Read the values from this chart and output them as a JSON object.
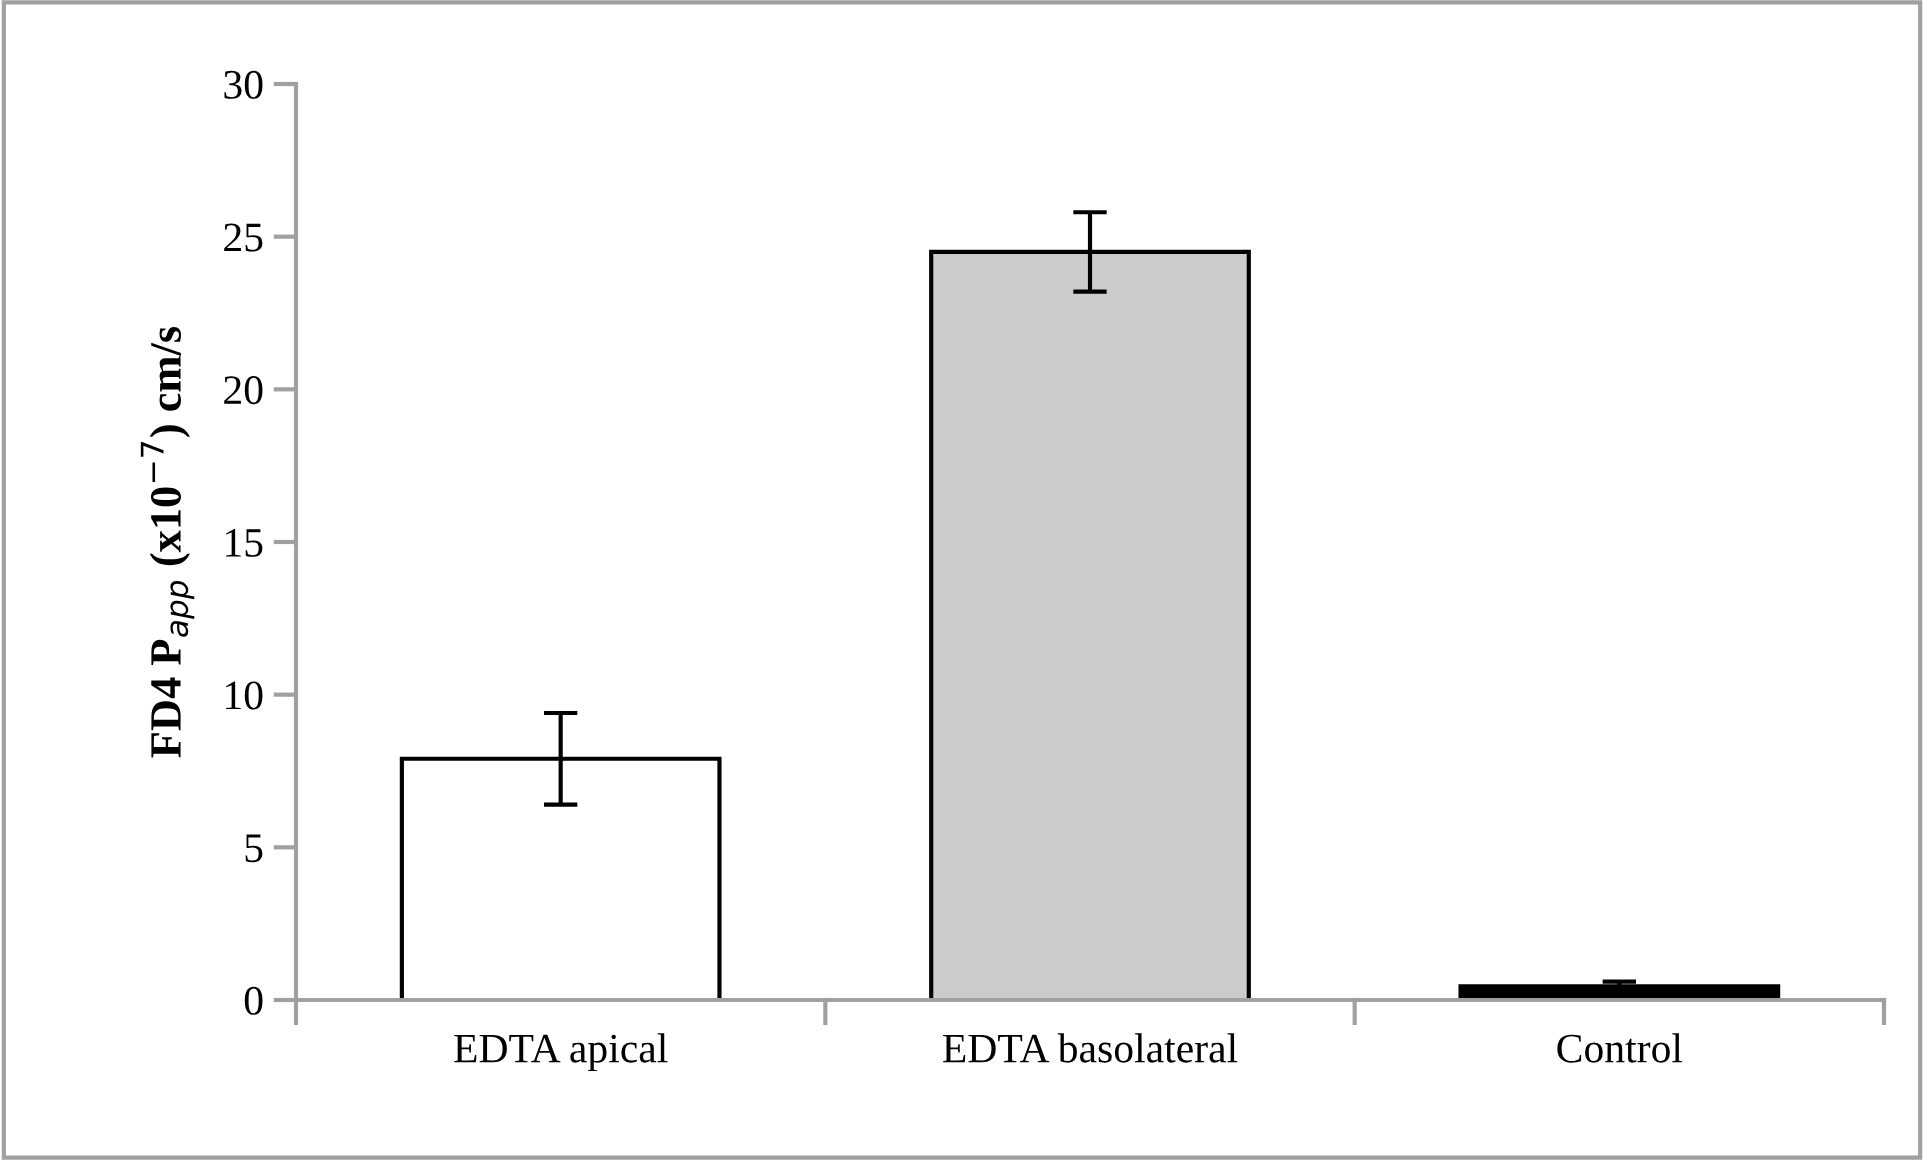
{
  "chart_data": {
    "type": "bar",
    "ylabel": "FD4 P$_{app}$ (x10$^{−7}$) cm/s",
    "categories": [
      "EDTA apical",
      "EDTA basolateral",
      "Control"
    ],
    "values": [
      7.9,
      24.5,
      0.45
    ],
    "colors": [
      "#ffffff",
      "#cccccc",
      "#000000"
    ],
    "errors": [
      1.5,
      1.3,
      0.15
    ],
    "ylim": [
      0,
      30
    ],
    "yticks": [
      0,
      5,
      10,
      15,
      20,
      25,
      30
    ],
    "grid": false
  }
}
